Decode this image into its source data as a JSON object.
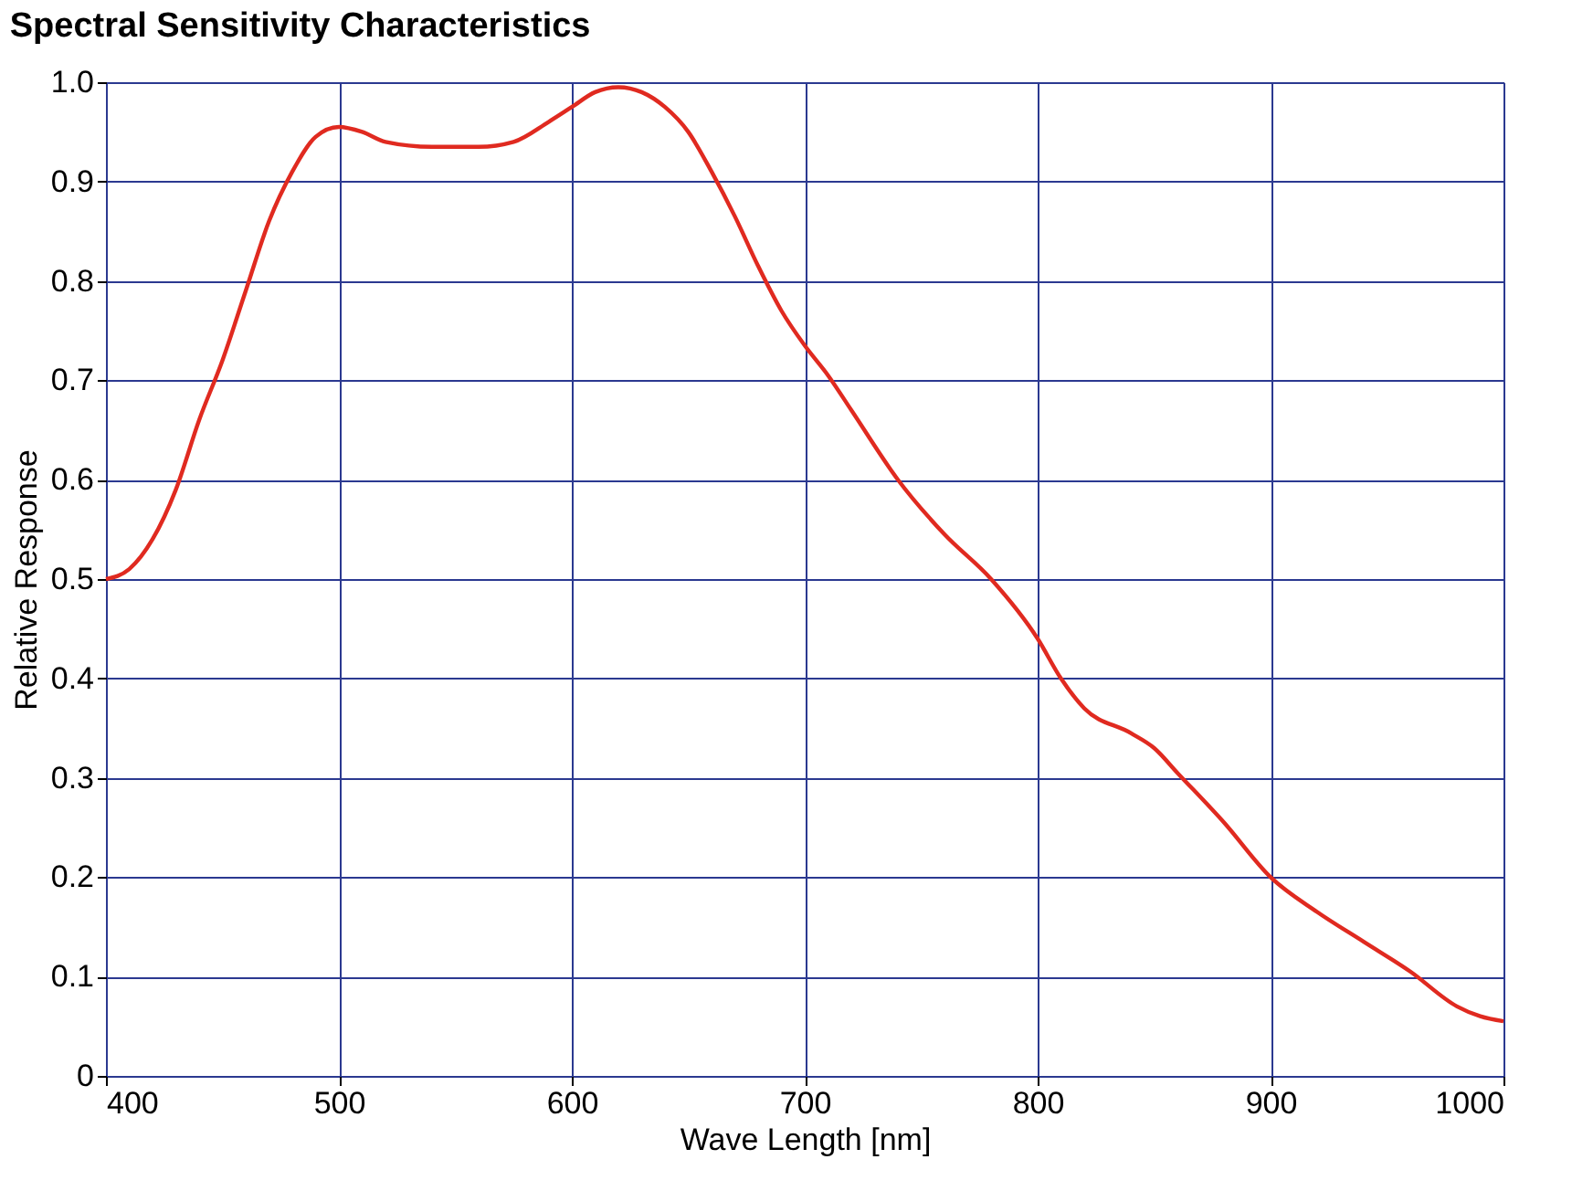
{
  "chart_data": {
    "type": "line",
    "title": "Spectral Sensitivity Characteristics",
    "xlabel": "Wave Length [nm]",
    "ylabel": "Relative Response",
    "x": [
      400,
      410,
      420,
      430,
      440,
      450,
      460,
      470,
      480,
      490,
      500,
      510,
      520,
      540,
      560,
      575,
      590,
      600,
      610,
      620,
      630,
      640,
      650,
      660,
      670,
      680,
      690,
      700,
      710,
      720,
      740,
      760,
      780,
      800,
      810,
      820,
      840,
      850,
      860,
      880,
      900,
      920,
      940,
      960,
      980,
      990,
      1000
    ],
    "series": [
      {
        "color": "#e02a20",
        "values": [
          0.5,
          0.51,
          0.54,
          0.59,
          0.66,
          0.72,
          0.79,
          0.86,
          0.91,
          0.945,
          0.955,
          0.95,
          0.94,
          0.935,
          0.935,
          0.94,
          0.96,
          0.975,
          0.99,
          0.995,
          0.99,
          0.975,
          0.95,
          0.91,
          0.865,
          0.815,
          0.77,
          0.735,
          0.705,
          0.67,
          0.6,
          0.545,
          0.5,
          0.44,
          0.4,
          0.37,
          0.345,
          0.33,
          0.305,
          0.255,
          0.2,
          0.165,
          0.135,
          0.105,
          0.07,
          0.06,
          0.055
        ]
      }
    ],
    "xlim": [
      400,
      1000
    ],
    "xticks": [
      400,
      500,
      600,
      700,
      800,
      900,
      1000
    ],
    "ylim": [
      0,
      1.0
    ],
    "yticks": [
      0,
      {
        "value": 0.1,
        "label": "0.1"
      },
      {
        "value": 0.2,
        "label": "0.2"
      },
      {
        "value": 0.3,
        "label": "0.3"
      },
      {
        "value": 0.4,
        "label": "0.4"
      },
      {
        "value": 0.5,
        "label": "0.5"
      },
      {
        "value": 0.6,
        "label": "0.6"
      },
      {
        "value": 0.7,
        "label": "0.7"
      },
      {
        "value": 0.8,
        "label": "0.8"
      },
      {
        "value": 0.9,
        "label": "0.9"
      },
      {
        "value": 1.0,
        "label": "1.0"
      }
    ],
    "grid": true,
    "line_style": "solid",
    "marker": "none"
  }
}
